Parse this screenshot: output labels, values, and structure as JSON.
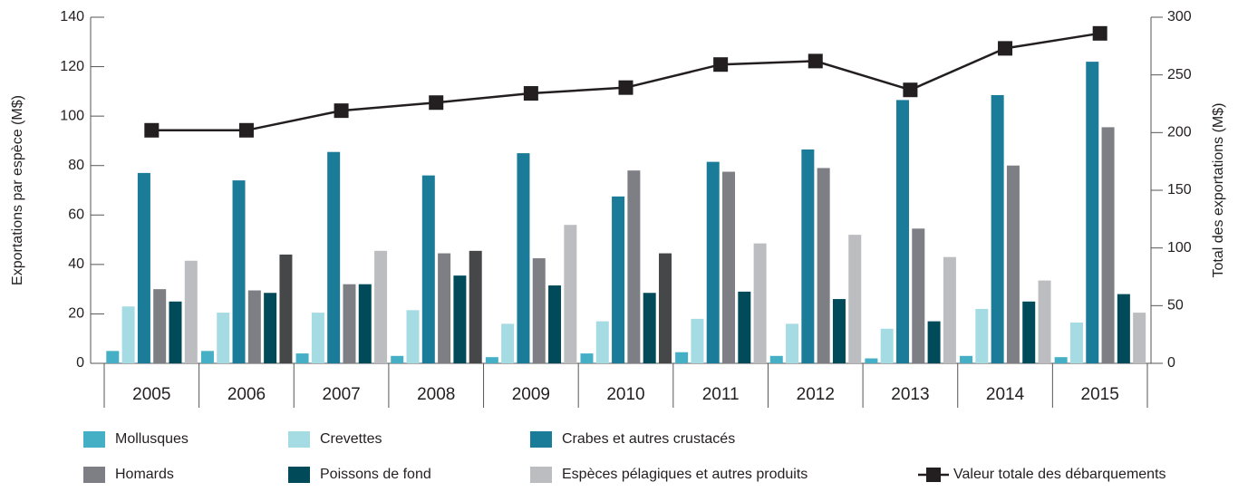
{
  "chart_data": {
    "type": "bar",
    "y_label": "Exportations par espèce (M$)",
    "y2_label": "Total des exportations (M$)",
    "categories": [
      "2005",
      "2006",
      "2007",
      "2008",
      "2009",
      "2010",
      "2011",
      "2012",
      "2013",
      "2014",
      "2015"
    ],
    "series": [
      {
        "name": "Mollusques",
        "color": "#45afc5",
        "values": [
          5,
          5,
          4,
          3,
          2.5,
          4,
          4.5,
          3,
          2,
          3,
          2.5
        ]
      },
      {
        "name": "Crevettes",
        "color": "#a5dbe3",
        "values": [
          23,
          20.5,
          20.5,
          21.5,
          16,
          17,
          18,
          16,
          14,
          22,
          16.5
        ]
      },
      {
        "name": "Crabes et autres crustacés",
        "color": "#1a7c98",
        "values": [
          77,
          74,
          85.5,
          76,
          85,
          67.5,
          81.5,
          86.5,
          106.5,
          108.5,
          122
        ]
      },
      {
        "name": "Homards",
        "color": "#7e7f84",
        "values": [
          30,
          29.5,
          32,
          44.5,
          42.5,
          78,
          77.5,
          79,
          54.5,
          80,
          95.5
        ]
      },
      {
        "name": "Poissons de fond",
        "color": "#004a59",
        "values": [
          25,
          28.5,
          32,
          35.5,
          31.5,
          28.5,
          29,
          26,
          17,
          25,
          28
        ]
      },
      {
        "name": "Espèces pélagiques et autres produits",
        "color": "#bcbdc1",
        "colors": [
          "#bcbdc1",
          "#464749",
          "#bcbdc1",
          "#464749",
          "#bcbdc1",
          "#464749",
          "#bcbdc1",
          "#bcbdc1",
          "#bcbdc1",
          "#bcbdc1",
          "#bcbdc1"
        ],
        "values": [
          41.5,
          44,
          45.5,
          45.5,
          56,
          44.5,
          48.5,
          52,
          43,
          33.5,
          20.5
        ]
      },
      {
        "name": "Valeur totale des débarquements",
        "type": "line",
        "axis": "y2",
        "color": "#231f20",
        "values": [
          202,
          202,
          219,
          226,
          234,
          239,
          259,
          262,
          237,
          273,
          286
        ]
      }
    ],
    "ylim": [
      0,
      140
    ],
    "yticks": [
      0,
      20,
      40,
      60,
      80,
      100,
      120,
      140
    ],
    "y2lim": [
      0,
      300
    ],
    "y2ticks": [
      0,
      50,
      100,
      150,
      200,
      250,
      300
    ]
  }
}
